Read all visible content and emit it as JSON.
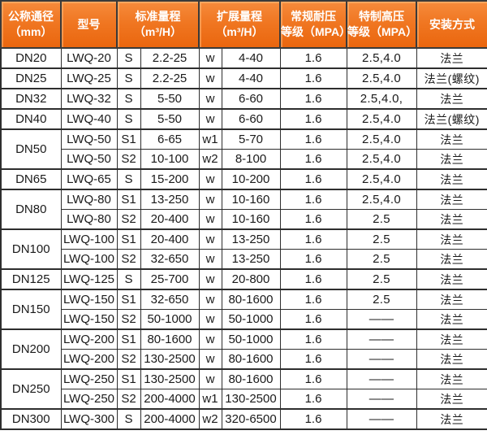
{
  "table": {
    "headers": [
      "公称通径\n（mm）",
      "型号",
      "标准量程\n（m³/H）",
      "扩展量程\n（m³/H）",
      "常规耐压\n等级（MPA）",
      "特制高压\n等级（MPA）",
      "安装方式"
    ],
    "colors": {
      "header_orange_top": "#f68b3c",
      "header_orange_bottom": "#ea660e",
      "header_text": "#ffffff",
      "border_dark": "#2e2e2e",
      "body_text": "#1a1a1a",
      "row_background": "#ffffff"
    },
    "rows": [
      {
        "dn": "DN20",
        "dn_span": 1,
        "model": "LWQ-20",
        "s": "S",
        "s_range": "2.2-25",
        "w": "w",
        "w_range": "4-40",
        "mpa": "1.6",
        "high_mpa": "2.5,4.0",
        "install": "法兰"
      },
      {
        "dn": "DN25",
        "dn_span": 1,
        "model": "LWQ-25",
        "s": "S",
        "s_range": "2.2-25",
        "w": "w",
        "w_range": "4-40",
        "mpa": "1.6",
        "high_mpa": "2.5,4.0",
        "install": "法兰(螺纹)"
      },
      {
        "dn": "DN32",
        "dn_span": 1,
        "model": "LWQ-32",
        "s": "S",
        "s_range": "5-50",
        "w": "w",
        "w_range": "6-60",
        "mpa": "1.6",
        "high_mpa": "2.5,4.0,",
        "install": "法兰"
      },
      {
        "dn": "DN40",
        "dn_span": 1,
        "model": "LWQ-40",
        "s": "S",
        "s_range": "5-50",
        "w": "w",
        "w_range": "6-60",
        "mpa": "1.6",
        "high_mpa": "2.5,4.0",
        "install": "法兰(螺纹)"
      },
      {
        "dn": "DN50",
        "dn_span": 2,
        "model": "LWQ-50",
        "s": "S1",
        "s_range": "6-65",
        "w": "w1",
        "w_range": "5-70",
        "mpa": "1.6",
        "high_mpa": "2.5,4.0",
        "install": "法兰"
      },
      {
        "dn": null,
        "model": "LWQ-50",
        "s": "S2",
        "s_range": "10-100",
        "w": "w2",
        "w_range": "8-100",
        "mpa": "1.6",
        "high_mpa": "2.5,4.0",
        "install": "法兰"
      },
      {
        "dn": "DN65",
        "dn_span": 1,
        "model": "LWQ-65",
        "s": "S",
        "s_range": "15-200",
        "w": "w",
        "w_range": "10-200",
        "mpa": "1.6",
        "high_mpa": "2.5,4.0",
        "install": "法兰"
      },
      {
        "dn": "DN80",
        "dn_span": 2,
        "model": "LWQ-80",
        "s": "S1",
        "s_range": "13-250",
        "w": "w",
        "w_range": "10-160",
        "mpa": "1.6",
        "high_mpa": "2.5,4.0",
        "install": "法兰"
      },
      {
        "dn": null,
        "model": "LWQ-80",
        "s": "S2",
        "s_range": "20-400",
        "w": "w",
        "w_range": "10-160",
        "mpa": "1.6",
        "high_mpa": "2.5",
        "install": "法兰"
      },
      {
        "dn": "DN100",
        "dn_span": 2,
        "model": "LWQ-100",
        "s": "S1",
        "s_range": "20-400",
        "w": "w",
        "w_range": "13-250",
        "mpa": "1.6",
        "high_mpa": "2.5",
        "install": "法兰"
      },
      {
        "dn": null,
        "model": "LWQ-100",
        "s": "S2",
        "s_range": "32-650",
        "w": "w",
        "w_range": "13-250",
        "mpa": "1.6",
        "high_mpa": "2.5",
        "install": "法兰"
      },
      {
        "dn": "DN125",
        "dn_span": 1,
        "model": "LWQ-125",
        "s": "S",
        "s_range": "25-700",
        "w": "w",
        "w_range": "20-800",
        "mpa": "1.6",
        "high_mpa": "2.5",
        "install": "法兰"
      },
      {
        "dn": "DN150",
        "dn_span": 2,
        "model": "LWQ-150",
        "s": "S1",
        "s_range": "32-650",
        "w": "w",
        "w_range": "80-1600",
        "mpa": "1.6",
        "high_mpa": "2.5",
        "install": "法兰"
      },
      {
        "dn": null,
        "model": "LWQ-150",
        "s": "S2",
        "s_range": "50-1000",
        "w": "w",
        "w_range": "50-1000",
        "mpa": "1.6",
        "high_mpa": "——",
        "install": "法兰"
      },
      {
        "dn": "DN200",
        "dn_span": 2,
        "model": "LWQ-200",
        "s": "S1",
        "s_range": "80-1600",
        "w": "w",
        "w_range": "50-1000",
        "mpa": "1.6",
        "high_mpa": "——",
        "install": "法兰"
      },
      {
        "dn": null,
        "model": "LWQ-200",
        "s": "S2",
        "s_range": "130-2500",
        "w": "w",
        "w_range": "80-1600",
        "mpa": "1.6",
        "high_mpa": "——",
        "install": "法兰"
      },
      {
        "dn": "DN250",
        "dn_span": 2,
        "model": "LWQ-250",
        "s": "S1",
        "s_range": "130-2500",
        "w": "w",
        "w_range": "80-1600",
        "mpa": "1.6",
        "high_mpa": "——",
        "install": "法兰"
      },
      {
        "dn": null,
        "model": "LWQ-250",
        "s": "S2",
        "s_range": "200-4000",
        "w": "w1",
        "w_range": "130-2500",
        "mpa": "1.6",
        "high_mpa": "——",
        "install": "法兰"
      },
      {
        "dn": "DN300",
        "dn_span": 1,
        "model": "LWQ-300",
        "s": "S",
        "s_range": "200-4000",
        "w": "w2",
        "w_range": "320-6500",
        "mpa": "1.6",
        "high_mpa": "——",
        "install": "法兰"
      }
    ]
  }
}
